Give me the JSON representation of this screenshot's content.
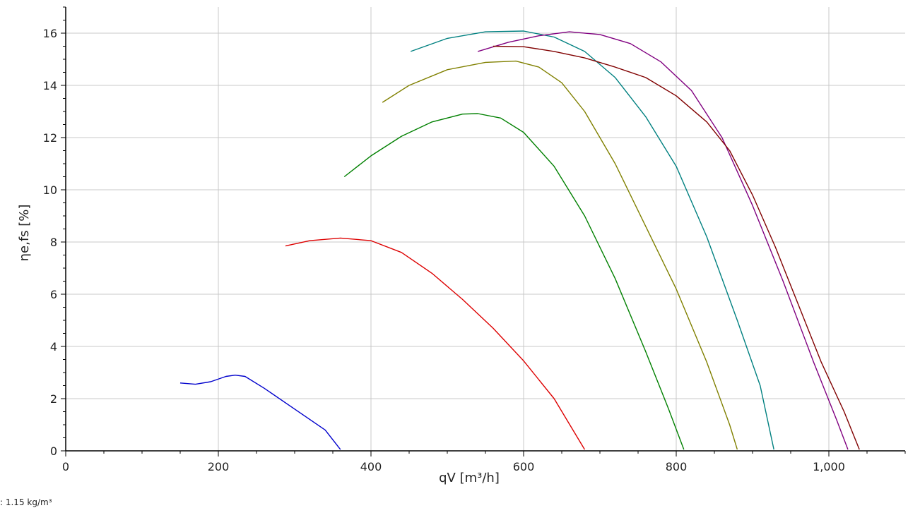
{
  "chart_data": {
    "type": "line",
    "xlabel": "qV [m³/h]",
    "ylabel": "ηe,fs [%]",
    "xlim": [
      0,
      1100
    ],
    "ylim": [
      0,
      17
    ],
    "xticks": [
      0,
      200,
      400,
      600,
      800,
      1000
    ],
    "xtick_labels": [
      "0",
      "200",
      "400",
      "600",
      "800",
      "1,000"
    ],
    "yticks": [
      0,
      2,
      4,
      6,
      8,
      10,
      12,
      14,
      16
    ],
    "ytick_labels": [
      "0",
      "2",
      "4",
      "6",
      "8",
      "10",
      "12",
      "14",
      "16"
    ],
    "grid": true,
    "legend": "none",
    "footnote": ": 1.15 kg/m³",
    "series": [
      {
        "color": "#0000cc",
        "points": [
          [
            150,
            2.6
          ],
          [
            170,
            2.55
          ],
          [
            190,
            2.65
          ],
          [
            210,
            2.85
          ],
          [
            222,
            2.9
          ],
          [
            235,
            2.85
          ],
          [
            260,
            2.4
          ],
          [
            300,
            1.6
          ],
          [
            340,
            0.8
          ],
          [
            360,
            0.05
          ]
        ]
      },
      {
        "color": "#dd0000",
        "points": [
          [
            288,
            7.85
          ],
          [
            320,
            8.05
          ],
          [
            360,
            8.15
          ],
          [
            400,
            8.05
          ],
          [
            440,
            7.6
          ],
          [
            480,
            6.8
          ],
          [
            520,
            5.8
          ],
          [
            560,
            4.7
          ],
          [
            600,
            3.45
          ],
          [
            640,
            2.0
          ],
          [
            680,
            0.05
          ]
        ]
      },
      {
        "color": "#008000",
        "points": [
          [
            365,
            10.5
          ],
          [
            400,
            11.3
          ],
          [
            440,
            12.05
          ],
          [
            480,
            12.6
          ],
          [
            520,
            12.9
          ],
          [
            540,
            12.92
          ],
          [
            570,
            12.75
          ],
          [
            600,
            12.2
          ],
          [
            640,
            10.9
          ],
          [
            680,
            9.0
          ],
          [
            720,
            6.6
          ],
          [
            760,
            3.8
          ],
          [
            790,
            1.6
          ],
          [
            810,
            0.05
          ]
        ]
      },
      {
        "color": "#808000",
        "points": [
          [
            415,
            13.35
          ],
          [
            450,
            14.0
          ],
          [
            500,
            14.6
          ],
          [
            550,
            14.88
          ],
          [
            590,
            14.93
          ],
          [
            620,
            14.7
          ],
          [
            650,
            14.1
          ],
          [
            680,
            13.0
          ],
          [
            720,
            11.0
          ],
          [
            760,
            8.6
          ],
          [
            800,
            6.2
          ],
          [
            840,
            3.4
          ],
          [
            870,
            1.0
          ],
          [
            880,
            0.05
          ]
        ]
      },
      {
        "color": "#008080",
        "points": [
          [
            452,
            15.3
          ],
          [
            500,
            15.8
          ],
          [
            550,
            16.05
          ],
          [
            600,
            16.08
          ],
          [
            640,
            15.85
          ],
          [
            680,
            15.3
          ],
          [
            720,
            14.3
          ],
          [
            760,
            12.8
          ],
          [
            800,
            10.9
          ],
          [
            840,
            8.2
          ],
          [
            880,
            5.0
          ],
          [
            910,
            2.5
          ],
          [
            928,
            0.05
          ]
        ]
      },
      {
        "color": "#800080",
        "points": [
          [
            540,
            15.3
          ],
          [
            580,
            15.65
          ],
          [
            620,
            15.9
          ],
          [
            660,
            16.05
          ],
          [
            700,
            15.95
          ],
          [
            740,
            15.6
          ],
          [
            780,
            14.9
          ],
          [
            820,
            13.8
          ],
          [
            860,
            12.0
          ],
          [
            900,
            9.4
          ],
          [
            940,
            6.5
          ],
          [
            980,
            3.4
          ],
          [
            1010,
            1.2
          ],
          [
            1025,
            0.05
          ]
        ]
      },
      {
        "color": "#800000",
        "points": [
          [
            560,
            15.5
          ],
          [
            600,
            15.48
          ],
          [
            640,
            15.3
          ],
          [
            680,
            15.05
          ],
          [
            720,
            14.7
          ],
          [
            760,
            14.3
          ],
          [
            800,
            13.6
          ],
          [
            840,
            12.6
          ],
          [
            870,
            11.5
          ],
          [
            900,
            9.8
          ],
          [
            930,
            7.8
          ],
          [
            960,
            5.6
          ],
          [
            990,
            3.4
          ],
          [
            1020,
            1.5
          ],
          [
            1040,
            0.05
          ]
        ]
      }
    ]
  }
}
